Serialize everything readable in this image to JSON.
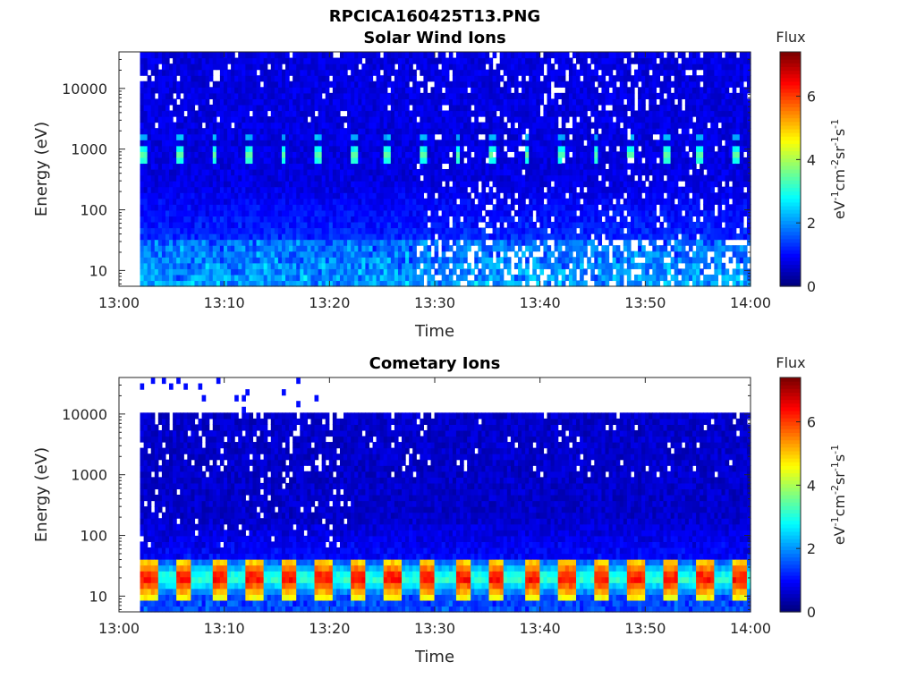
{
  "figure": {
    "title": "RPCICA160425T13.PNG"
  },
  "chart_data": [
    {
      "type": "heatmap",
      "title": "Solar Wind Ions",
      "xlabel": "Time",
      "ylabel": "Energy (eV)",
      "x_ticks": [
        "13:00",
        "13:10",
        "13:20",
        "13:30",
        "13:40",
        "13:50",
        "14:00"
      ],
      "y_ticks": [
        "10",
        "100",
        "1000",
        "10000"
      ],
      "y_scale": "log",
      "xlim": [
        "13:00",
        "14:00"
      ],
      "data_start": "13:02",
      "colorbar": {
        "label": "Flux",
        "unit_label": "eV-1cm-2sr-1s-1",
        "ticks": [
          "0",
          "2",
          "4",
          "6"
        ],
        "range": [
          0,
          7.4
        ],
        "colormap": "jet"
      },
      "features": {
        "beam_energy_eV": 800,
        "beam_secondary_eV": 1600,
        "beam_flux_peak": 3.3,
        "low_energy_band_eV": [
          6,
          30
        ],
        "low_energy_flux": 2.3,
        "gaps_after": "13:28"
      }
    },
    {
      "type": "heatmap",
      "title": "Cometary Ions",
      "xlabel": "Time",
      "ylabel": "Energy (eV)",
      "x_ticks": [
        "13:00",
        "13:10",
        "13:20",
        "13:30",
        "13:40",
        "13:50",
        "14:00"
      ],
      "y_ticks": [
        "10",
        "100",
        "1000",
        "10000"
      ],
      "y_scale": "log",
      "xlim": [
        "13:00",
        "14:00"
      ],
      "data_start": "13:02",
      "colorbar": {
        "label": "Flux",
        "unit_label": "eV-1cm-2sr-1s-1",
        "ticks": [
          "0",
          "2",
          "4",
          "6"
        ],
        "range": [
          0,
          7.4
        ],
        "colormap": "jet"
      },
      "features": {
        "peak_energy_eV": 20,
        "peak_flux": 6.3,
        "upper_cutoff_eV": 11000,
        "sparse_above_cutoff": true
      }
    }
  ]
}
